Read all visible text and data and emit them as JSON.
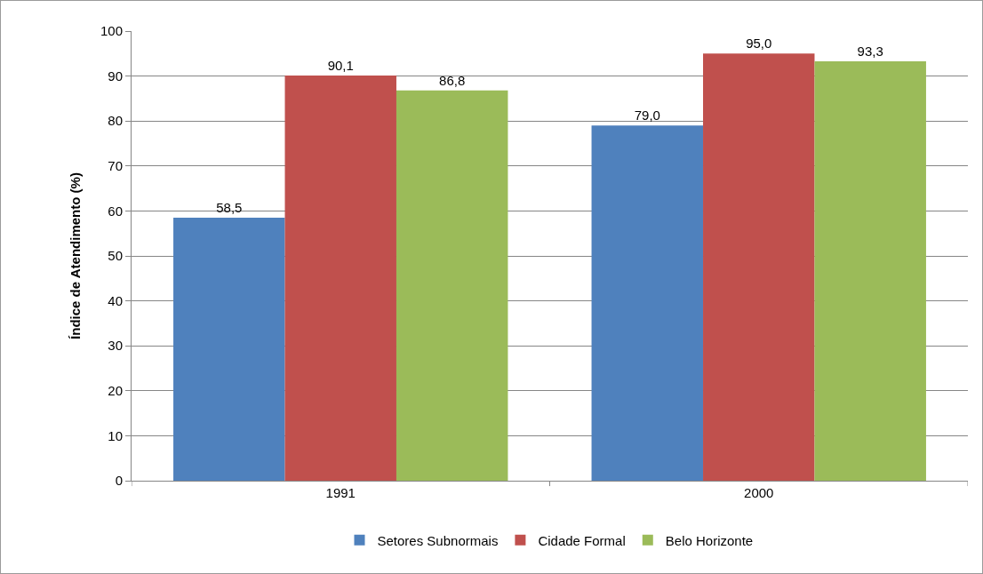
{
  "chart_data": {
    "type": "bar",
    "ylabel": "Índice de Atendimento (%)",
    "categories": [
      "1991",
      "2000"
    ],
    "series": [
      {
        "name": "Setores Subnormais",
        "color": "#4f81bd",
        "values": [
          58.5,
          79.0
        ],
        "value_labels": [
          "58,5",
          "79,0"
        ]
      },
      {
        "name": "Cidade Formal",
        "color": "#c0504d",
        "values": [
          90.1,
          95.0
        ],
        "value_labels": [
          "90,1",
          "95,0"
        ]
      },
      {
        "name": "Belo Horizonte",
        "color": "#9bbb59",
        "values": [
          86.8,
          93.3
        ],
        "value_labels": [
          "86,8",
          "93,3"
        ]
      }
    ],
    "ylim": [
      0,
      100
    ],
    "yticks": [
      0,
      10,
      20,
      30,
      40,
      50,
      60,
      70,
      80,
      90,
      100
    ],
    "grid": "y",
    "legend": "bottom"
  }
}
